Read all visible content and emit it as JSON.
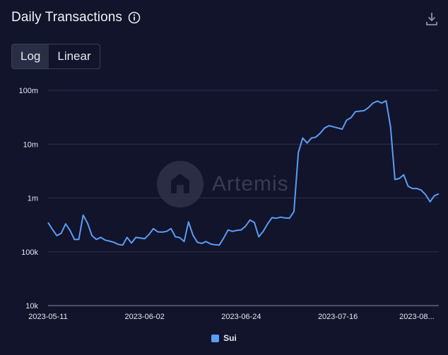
{
  "header": {
    "title": "Daily Transactions"
  },
  "toggle": {
    "log_label": "Log",
    "linear_label": "Linear",
    "selected": "Log"
  },
  "watermark": {
    "text": "Artemis"
  },
  "colors": {
    "series": "#5b9cf6",
    "grid": "#2c3050",
    "background": "#11142a"
  },
  "chart_data": {
    "type": "line",
    "title": "Daily Transactions",
    "y_scale": "log",
    "ylim": [
      10000,
      100000000
    ],
    "y_ticks": [
      {
        "value": 10000,
        "label": "10k"
      },
      {
        "value": 100000,
        "label": "100k"
      },
      {
        "value": 1000000,
        "label": "1m"
      },
      {
        "value": 10000000,
        "label": "10m"
      },
      {
        "value": 100000000,
        "label": "100m"
      }
    ],
    "x_start": "2023-05-11",
    "x_end": "2023-08-04",
    "x_ticks": [
      {
        "value": "2023-05-11",
        "label": "2023-05-11"
      },
      {
        "value": "2023-06-02",
        "label": "2023-06-02"
      },
      {
        "value": "2023-06-24",
        "label": "2023-06-24"
      },
      {
        "value": "2023-07-16",
        "label": "2023-07-16"
      },
      {
        "value": "2023-08-03",
        "label": "2023-08..."
      }
    ],
    "grid": true,
    "legend_position": "bottom-center",
    "series": [
      {
        "name": "Sui",
        "color": "#5b9cf6",
        "points": [
          [
            "2023-05-11",
            350000
          ],
          [
            "2023-05-12",
            260000
          ],
          [
            "2023-05-13",
            200000
          ],
          [
            "2023-05-14",
            220000
          ],
          [
            "2023-05-15",
            330000
          ],
          [
            "2023-05-16",
            250000
          ],
          [
            "2023-05-17",
            170000
          ],
          [
            "2023-05-18",
            170000
          ],
          [
            "2023-05-19",
            480000
          ],
          [
            "2023-05-20",
            340000
          ],
          [
            "2023-05-21",
            200000
          ],
          [
            "2023-05-22",
            170000
          ],
          [
            "2023-05-23",
            185000
          ],
          [
            "2023-05-24",
            165000
          ],
          [
            "2023-05-25",
            158000
          ],
          [
            "2023-05-26",
            150000
          ],
          [
            "2023-05-27",
            137000
          ],
          [
            "2023-05-28",
            133000
          ],
          [
            "2023-05-29",
            185000
          ],
          [
            "2023-05-30",
            145000
          ],
          [
            "2023-05-31",
            185000
          ],
          [
            "2023-06-01",
            180000
          ],
          [
            "2023-06-02",
            175000
          ],
          [
            "2023-06-03",
            210000
          ],
          [
            "2023-06-04",
            270000
          ],
          [
            "2023-06-05",
            235000
          ],
          [
            "2023-06-06",
            232000
          ],
          [
            "2023-06-07",
            240000
          ],
          [
            "2023-06-08",
            270000
          ],
          [
            "2023-06-09",
            190000
          ],
          [
            "2023-06-10",
            183000
          ],
          [
            "2023-06-11",
            155000
          ],
          [
            "2023-06-12",
            360000
          ],
          [
            "2023-06-13",
            205000
          ],
          [
            "2023-06-14",
            150000
          ],
          [
            "2023-06-15",
            143000
          ],
          [
            "2023-06-16",
            155000
          ],
          [
            "2023-06-17",
            140000
          ],
          [
            "2023-06-18",
            135000
          ],
          [
            "2023-06-19",
            133000
          ],
          [
            "2023-06-20",
            180000
          ],
          [
            "2023-06-21",
            255000
          ],
          [
            "2023-06-22",
            240000
          ],
          [
            "2023-06-23",
            250000
          ],
          [
            "2023-06-24",
            255000
          ],
          [
            "2023-06-25",
            300000
          ],
          [
            "2023-06-26",
            390000
          ],
          [
            "2023-06-27",
            350000
          ],
          [
            "2023-06-28",
            190000
          ],
          [
            "2023-06-29",
            240000
          ],
          [
            "2023-06-30",
            330000
          ],
          [
            "2023-07-01",
            430000
          ],
          [
            "2023-07-02",
            420000
          ],
          [
            "2023-07-03",
            440000
          ],
          [
            "2023-07-04",
            425000
          ],
          [
            "2023-07-05",
            420000
          ],
          [
            "2023-07-06",
            560000
          ],
          [
            "2023-07-07",
            7000000
          ],
          [
            "2023-07-08",
            13000000
          ],
          [
            "2023-07-09",
            10500000
          ],
          [
            "2023-07-10",
            13000000
          ],
          [
            "2023-07-11",
            13500000
          ],
          [
            "2023-07-12",
            16000000
          ],
          [
            "2023-07-13",
            20000000
          ],
          [
            "2023-07-14",
            22000000
          ],
          [
            "2023-07-15",
            21000000
          ],
          [
            "2023-07-16",
            20000000
          ],
          [
            "2023-07-17",
            19000000
          ],
          [
            "2023-07-18",
            28000000
          ],
          [
            "2023-07-19",
            31000000
          ],
          [
            "2023-07-20",
            40000000
          ],
          [
            "2023-07-21",
            41000000
          ],
          [
            "2023-07-22",
            42000000
          ],
          [
            "2023-07-23",
            48000000
          ],
          [
            "2023-07-24",
            58000000
          ],
          [
            "2023-07-25",
            63000000
          ],
          [
            "2023-07-26",
            58000000
          ],
          [
            "2023-07-27",
            64000000
          ],
          [
            "2023-07-28",
            21000000
          ],
          [
            "2023-07-29",
            2200000
          ],
          [
            "2023-07-30",
            2300000
          ],
          [
            "2023-07-31",
            2700000
          ],
          [
            "2023-08-01",
            1650000
          ],
          [
            "2023-08-02",
            1500000
          ],
          [
            "2023-08-03",
            1500000
          ],
          [
            "2023-08-04",
            1400000
          ],
          [
            "2023-08-05",
            1150000
          ],
          [
            "2023-08-06",
            850000
          ],
          [
            "2023-08-07",
            1100000
          ],
          [
            "2023-08-08",
            1200000
          ]
        ]
      }
    ]
  }
}
